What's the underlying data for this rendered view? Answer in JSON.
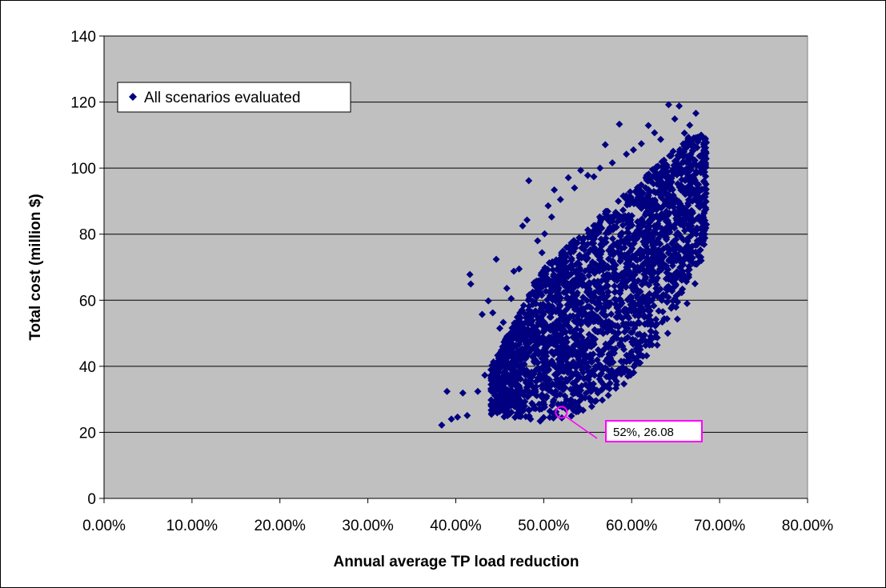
{
  "chart_data": {
    "type": "scatter",
    "xlabel": "Annual average TP load reduction",
    "ylabel": "Total cost (million $)",
    "xlim": [
      0,
      80
    ],
    "ylim": [
      0,
      140
    ],
    "x_ticks": [
      "0.00%",
      "10.00%",
      "20.00%",
      "30.00%",
      "40.00%",
      "50.00%",
      "60.00%",
      "70.00%",
      "80.00%"
    ],
    "y_ticks": [
      "0",
      "20",
      "40",
      "60",
      "80",
      "100",
      "120",
      "140"
    ],
    "x_tick_values": [
      0,
      10,
      20,
      30,
      40,
      50,
      60,
      70,
      80
    ],
    "y_tick_values": [
      0,
      20,
      40,
      60,
      80,
      100,
      120,
      140
    ],
    "grid": "horizontal",
    "legend_position": "top-left",
    "plot_background": "#c0c0c0",
    "series": [
      {
        "name": "All scenarios evaluated",
        "color": "#000080",
        "marker": "diamond",
        "points": [
          [
            38.4,
            22.2
          ],
          [
            39.0,
            32.4
          ],
          [
            39.5,
            24.0
          ],
          [
            40.2,
            24.6
          ],
          [
            40.8,
            31.9
          ],
          [
            41.3,
            25.1
          ],
          [
            41.6,
            67.8
          ],
          [
            41.7,
            64.9
          ],
          [
            42.5,
            32.4
          ],
          [
            43.0,
            55.7
          ],
          [
            43.3,
            37.3
          ],
          [
            43.7,
            59.8
          ],
          [
            44.2,
            56.2
          ],
          [
            44.6,
            72.4
          ],
          [
            45.0,
            51.5
          ],
          [
            45.4,
            53.3
          ],
          [
            45.8,
            63.6
          ],
          [
            46.3,
            60.5
          ],
          [
            46.6,
            68.8
          ],
          [
            47.2,
            69.5
          ],
          [
            47.6,
            82.5
          ],
          [
            48.1,
            84.3
          ],
          [
            48.3,
            96.2
          ],
          [
            48.9,
            65.3
          ],
          [
            49.3,
            78.0
          ],
          [
            49.8,
            74.4
          ],
          [
            50.1,
            80.1
          ],
          [
            50.5,
            88.6
          ],
          [
            50.9,
            85.2
          ],
          [
            51.2,
            93.4
          ],
          [
            51.9,
            90.5
          ],
          [
            52.4,
            31.0
          ],
          [
            52.8,
            97.1
          ],
          [
            53.5,
            94.0
          ],
          [
            54.2,
            99.3
          ],
          [
            55.0,
            97.8
          ],
          [
            55.7,
            97.4
          ],
          [
            56.4,
            100.0
          ],
          [
            57.0,
            107.1
          ],
          [
            57.8,
            101.6
          ],
          [
            58.6,
            113.3
          ],
          [
            59.4,
            104.2
          ],
          [
            60.2,
            105.5
          ],
          [
            61.1,
            107.4
          ],
          [
            61.9,
            112.9
          ],
          [
            62.6,
            110.7
          ],
          [
            63.3,
            108.7
          ],
          [
            64.2,
            119.2
          ],
          [
            64.9,
            114.9
          ],
          [
            65.4,
            118.8
          ],
          [
            66.0,
            110.6
          ],
          [
            66.6,
            113.0
          ],
          [
            67.3,
            116.6
          ],
          [
            68.2,
            105.2
          ],
          [
            47.0,
            44.5
          ],
          [
            48.6,
            38.2
          ],
          [
            50.2,
            42.0
          ],
          [
            51.0,
            47.5
          ],
          [
            44.8,
            27.0
          ],
          [
            46.1,
            25.5
          ],
          [
            47.4,
            24.8
          ],
          [
            48.5,
            24.0
          ],
          [
            49.6,
            23.4
          ],
          [
            50.7,
            26.4
          ],
          [
            51.8,
            28.0
          ],
          [
            53.1,
            29.2
          ],
          [
            54.3,
            30.8
          ],
          [
            55.5,
            32.7
          ],
          [
            56.8,
            34.5
          ],
          [
            58.0,
            36.4
          ],
          [
            59.2,
            38.3
          ],
          [
            60.4,
            40.6
          ],
          [
            61.7,
            43.2
          ],
          [
            62.9,
            46.4
          ],
          [
            64.1,
            50.0
          ],
          [
            65.2,
            54.3
          ],
          [
            66.3,
            59.0
          ],
          [
            67.2,
            65.0
          ],
          [
            67.9,
            72.0
          ],
          [
            68.3,
            80.0
          ],
          [
            68.4,
            88.0
          ],
          [
            68.2,
            96.0
          ]
        ]
      }
    ],
    "annotation": {
      "label": "52%, 26.08",
      "x": 52,
      "y": 26.08,
      "color": "#ff00ff"
    }
  }
}
